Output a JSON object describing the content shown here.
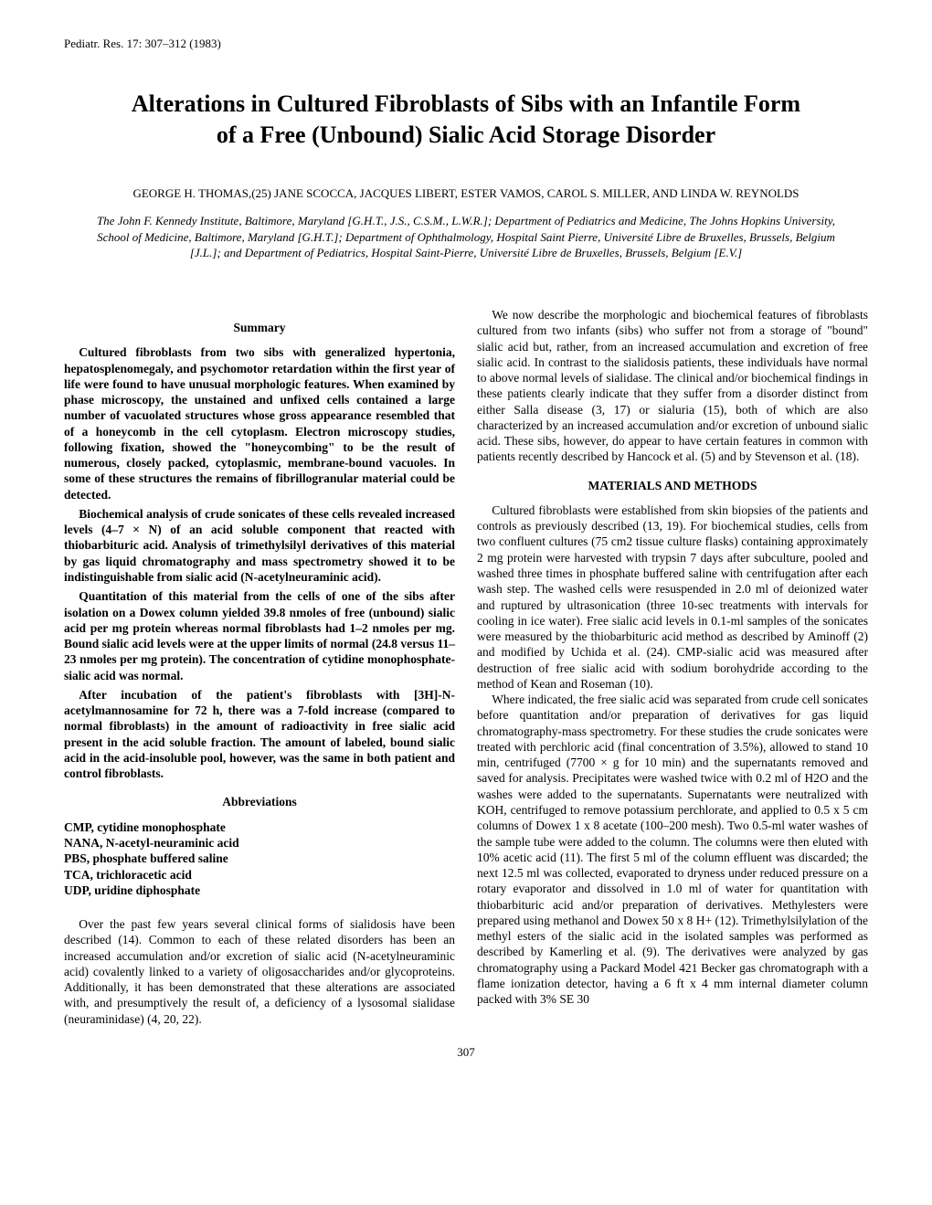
{
  "journal_header": "Pediatr. Res. 17: 307–312 (1983)",
  "title": "Alterations in Cultured Fibroblasts of Sibs with an Infantile Form of a Free (Unbound) Sialic Acid Storage Disorder",
  "authors": "GEORGE H. THOMAS,(25) JANE SCOCCA, JACQUES LIBERT, ESTER VAMOS, CAROL S. MILLER, AND LINDA W. REYNOLDS",
  "affiliations": "The John F. Kennedy Institute, Baltimore, Maryland [G.H.T., J.S., C.S.M., L.W.R.]; Department of Pediatrics and Medicine, The Johns Hopkins University, School of Medicine, Baltimore, Maryland [G.H.T.]; Department of Ophthalmology, Hospital Saint Pierre, Université Libre de Bruxelles, Brussels, Belgium [J.L.]; and Department of Pediatrics, Hospital Saint-Pierre, Université Libre de Bruxelles, Brussels, Belgium [E.V.]",
  "summary_heading": "Summary",
  "summary": [
    "Cultured fibroblasts from two sibs with generalized hypertonia, hepatosplenomegaly, and psychomotor retardation within the first year of life were found to have unusual morphologic features. When examined by phase microscopy, the unstained and unfixed cells contained a large number of vacuolated structures whose gross appearance resembled that of a honeycomb in the cell cytoplasm. Electron microscopy studies, following fixation, showed the \"honeycombing\" to be the result of numerous, closely packed, cytoplasmic, membrane-bound vacuoles. In some of these structures the remains of fibrillogranular material could be detected.",
    "Biochemical analysis of crude sonicates of these cells revealed increased levels (4–7 × N) of an acid soluble component that reacted with thiobarbituric acid. Analysis of trimethylsilyl derivatives of this material by gas liquid chromatography and mass spectrometry showed it to be indistinguishable from sialic acid (N-acetylneuraminic acid).",
    "Quantitation of this material from the cells of one of the sibs after isolation on a Dowex column yielded 39.8 nmoles of free (unbound) sialic acid per mg protein whereas normal fibroblasts had 1–2 nmoles per mg. Bound sialic acid levels were at the upper limits of normal (24.8 versus 11–23 nmoles per mg protein). The concentration of cytidine monophosphate-sialic acid was normal.",
    "After incubation of the patient's fibroblasts with [3H]-N-acetylmannosamine for 72 h, there was a 7-fold increase (compared to normal fibroblasts) in the amount of radioactivity in free sialic acid present in the acid soluble fraction. The amount of labeled, bound sialic acid in the acid-insoluble pool, however, was the same in both patient and control fibroblasts."
  ],
  "abbrev_heading": "Abbreviations",
  "abbreviations": [
    "CMP, cytidine monophosphate",
    "NANA, N-acetyl-neuraminic acid",
    "PBS, phosphate buffered saline",
    "TCA, trichloracetic acid",
    "UDP, uridine diphosphate"
  ],
  "intro": [
    "Over the past few years several clinical forms of sialidosis have been described (14). Common to each of these related disorders has been an increased accumulation and/or excretion of sialic acid (N-acetylneuraminic acid) covalently linked to a variety of oligosaccharides and/or glycoproteins. Additionally, it has been demonstrated that these alterations are associated with, and presumptively the result of, a deficiency of a lysosomal sialidase (neuraminidase) (4, 20, 22).",
    "We now describe the morphologic and biochemical features of fibroblasts cultured from two infants (sibs) who suffer not from a storage of \"bound\" sialic acid but, rather, from an increased accumulation and excretion of free sialic acid. In contrast to the sialidosis patients, these individuals have normal to above normal levels of sialidase. The clinical and/or biochemical findings in these patients clearly indicate that they suffer from a disorder distinct from either Salla disease (3, 17) or sialuria (15), both of which are also characterized by an increased accumulation and/or excretion of unbound sialic acid. These sibs, however, do appear to have certain features in common with patients recently described by Hancock et al. (5) and by Stevenson et al. (18)."
  ],
  "methods_heading": "MATERIALS AND METHODS",
  "methods": [
    "Cultured fibroblasts were established from skin biopsies of the patients and controls as previously described (13, 19). For biochemical studies, cells from two confluent cultures (75 cm2 tissue culture flasks) containing approximately 2 mg protein were harvested with trypsin 7 days after subculture, pooled and washed three times in phosphate buffered saline with centrifugation after each wash step. The washed cells were resuspended in 2.0 ml of deionized water and ruptured by ultrasonication (three 10-sec treatments with intervals for cooling in ice water). Free sialic acid levels in 0.1-ml samples of the sonicates were measured by the thiobarbituric acid method as described by Aminoff (2) and modified by Uchida et al. (24). CMP-sialic acid was measured after destruction of free sialic acid with sodium borohydride according to the method of Kean and Roseman (10).",
    "Where indicated, the free sialic acid was separated from crude cell sonicates before quantitation and/or preparation of derivatives for gas liquid chromatography-mass spectrometry. For these studies the crude sonicates were treated with perchloric acid (final concentration of 3.5%), allowed to stand 10 min, centrifuged (7700 × g for 10 min) and the supernatants removed and saved for analysis. Precipitates were washed twice with 0.2 ml of H2O and the washes were added to the supernatants. Supernatants were neutralized with KOH, centrifuged to remove potassium perchlorate, and applied to 0.5 x 5 cm columns of Dowex 1 x 8 acetate (100–200 mesh). Two 0.5-ml water washes of the sample tube were added to the column. The columns were then eluted with 10% acetic acid (11). The first 5 ml of the column effluent was discarded; the next 12.5 ml was collected, evaporated to dryness under reduced pressure on a rotary evaporator and dissolved in 1.0 ml of water for quantitation with thiobarbituric acid and/or preparation of derivatives. Methylesters were prepared using methanol and Dowex 50 x 8 H+ (12). Trimethylsilylation of the methyl esters of the sialic acid in the isolated samples was performed as described by Kamerling et al. (9). The derivatives were analyzed by gas chromatography using a Packard Model 421 Becker gas chromatograph with a flame ionization detector, having a 6 ft x 4 mm internal diameter column packed with 3% SE 30"
  ],
  "page_number": "307"
}
